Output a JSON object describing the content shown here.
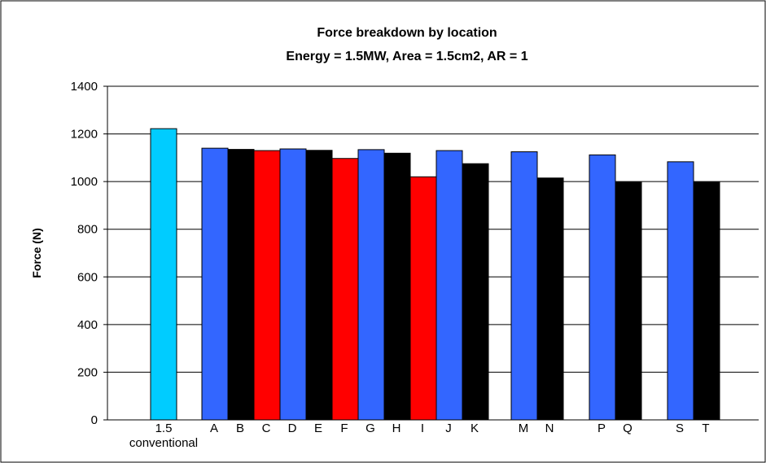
{
  "chart_data": {
    "type": "bar",
    "title": "Force breakdown by location",
    "subtitle": "Energy = 1.5MW, Area = 1.5cm2, AR = 1",
    "xlabel": "",
    "ylabel": "Force (N)",
    "ylim": [
      0,
      1400
    ],
    "yticks": [
      0,
      200,
      400,
      600,
      800,
      1000,
      1200,
      1400
    ],
    "grid": true,
    "legend": "none",
    "categories": [
      {
        "label": "1.5",
        "sublabel": "conventional",
        "value": 1222,
        "color": "#00ccff"
      },
      {
        "label": "A",
        "value": 1140,
        "color": "#3366ff"
      },
      {
        "label": "B",
        "value": 1135,
        "color": "#000000"
      },
      {
        "label": "C",
        "value": 1130,
        "color": "#ff0000"
      },
      {
        "label": "D",
        "value": 1137,
        "color": "#3366ff"
      },
      {
        "label": "E",
        "value": 1131,
        "color": "#000000"
      },
      {
        "label": "F",
        "value": 1097,
        "color": "#ff0000"
      },
      {
        "label": "G",
        "value": 1134,
        "color": "#3366ff"
      },
      {
        "label": "H",
        "value": 1119,
        "color": "#000000"
      },
      {
        "label": "I",
        "value": 1020,
        "color": "#ff0000"
      },
      {
        "label": "J",
        "value": 1130,
        "color": "#3366ff"
      },
      {
        "label": "K",
        "value": 1075,
        "color": "#000000"
      },
      {
        "label": "M",
        "value": 1125,
        "color": "#3366ff"
      },
      {
        "label": "N",
        "value": 1015,
        "color": "#000000"
      },
      {
        "label": "P",
        "value": 1112,
        "color": "#3366ff"
      },
      {
        "label": "Q",
        "value": 997,
        "color": "#000000"
      },
      {
        "label": "S",
        "value": 1083,
        "color": "#3366ff"
      },
      {
        "label": "T",
        "value": 997,
        "color": "#000000"
      }
    ]
  }
}
